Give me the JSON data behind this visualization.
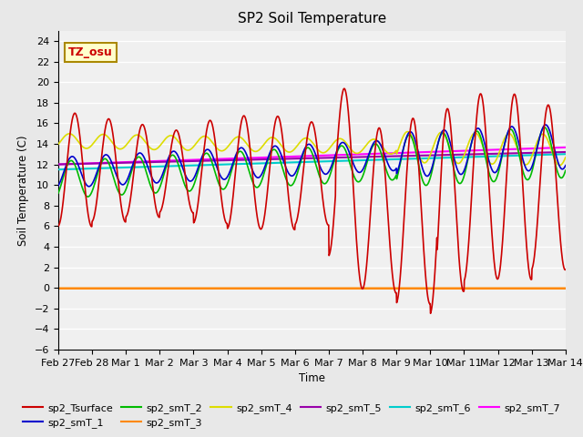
{
  "title": "SP2 Soil Temperature",
  "xlabel": "Time",
  "ylabel": "Soil Temperature (C)",
  "ylim": [
    -6,
    25
  ],
  "yticks": [
    -6,
    -4,
    -2,
    0,
    2,
    4,
    6,
    8,
    10,
    12,
    14,
    16,
    18,
    20,
    22,
    24
  ],
  "background_color": "#e8e8e8",
  "plot_bg_color": "#f0f0f0",
  "tz_label": "TZ_osu",
  "series_colors": {
    "sp2_Tsurface": "#cc0000",
    "sp2_smT_1": "#0000cc",
    "sp2_smT_2": "#00bb00",
    "sp2_smT_3": "#ff8800",
    "sp2_smT_4": "#dddd00",
    "sp2_smT_5": "#9900aa",
    "sp2_smT_6": "#00cccc",
    "sp2_smT_7": "#ff00ff"
  },
  "x_tick_labels": [
    "Feb 27",
    "Feb 28",
    "Mar 1",
    "Mar 2",
    "Mar 3",
    "Mar 4",
    "Mar 5",
    "Mar 6",
    "Mar 7",
    "Mar 8",
    "Mar 9",
    "Mar 10",
    "Mar 11",
    "Mar 12",
    "Mar 13",
    "Mar 14"
  ],
  "x_tick_positions": [
    0,
    1,
    2,
    3,
    4,
    5,
    6,
    7,
    8,
    9,
    10,
    11,
    12,
    13,
    14,
    15
  ],
  "figsize": [
    6.4,
    4.8
  ],
  "dpi": 100
}
